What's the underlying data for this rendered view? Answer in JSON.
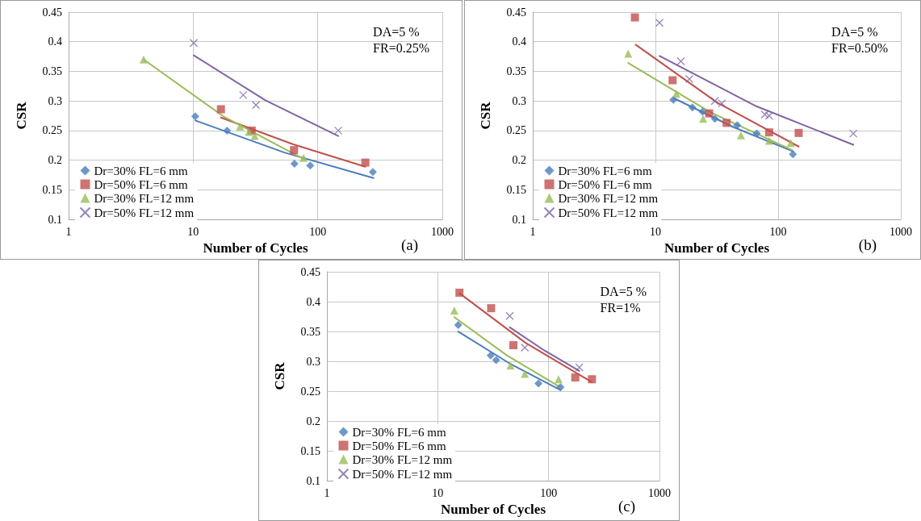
{
  "chart_data": [
    {
      "type": "scatter",
      "xlabel": "Number of Cycles",
      "ylabel": "CSR",
      "annotations": [
        "DA=5 %",
        "FR=0.25%",
        "(a)"
      ],
      "log": "x",
      "xlim": [
        1,
        1000
      ],
      "xticks": [
        1,
        10,
        100,
        1000
      ],
      "ylim": [
        0.1,
        0.45
      ],
      "yticks": [
        0.1,
        0.15,
        0.2,
        0.25,
        0.3,
        0.35,
        0.4,
        0.45
      ],
      "grid": true,
      "legend": "bottom left",
      "series": [
        {
          "name": "Dr=30% FL=6 mm",
          "color": "#4a7ebb",
          "marker": "diamond",
          "x": [
            10.4,
            18.7,
            65,
            87,
            277
          ],
          "values": [
            0.274,
            0.25,
            0.194,
            0.191,
            0.18
          ]
        },
        {
          "name": "Dr=50% FL=6 mm",
          "color": "#c0504d",
          "marker": "square",
          "x": [
            16.7,
            29.5,
            64.5,
            241
          ],
          "values": [
            0.286,
            0.25,
            0.217,
            0.196
          ]
        },
        {
          "name": "Dr=30% FL=12 mm",
          "color": "#9bbb59",
          "marker": "triangle",
          "x": [
            4,
            23.8,
            28,
            31.2,
            77
          ],
          "values": [
            0.37,
            0.257,
            0.248,
            0.241,
            0.204
          ]
        },
        {
          "name": "Dr=50% FL=12 mm",
          "color": "#8064a2",
          "marker": "cross",
          "x": [
            10.1,
            25.2,
            31.9,
            146
          ],
          "values": [
            0.398,
            0.31,
            0.293,
            0.25
          ]
        },
        {
          "type": "line",
          "color": "#4a7ebb",
          "marker": "none",
          "x": [
            10.4,
            54,
            280
          ],
          "values": [
            0.267,
            0.213,
            0.17
          ]
        },
        {
          "type": "line",
          "color": "#c0504d",
          "marker": "none",
          "x": [
            16.7,
            63,
            241
          ],
          "values": [
            0.272,
            0.227,
            0.189
          ]
        },
        {
          "type": "line",
          "color": "#9bbb59",
          "marker": "none",
          "x": [
            4,
            17.5,
            77
          ],
          "values": [
            0.37,
            0.274,
            0.202
          ]
        },
        {
          "type": "line",
          "color": "#8064a2",
          "marker": "none",
          "x": [
            10.1,
            38,
            146
          ],
          "values": [
            0.377,
            0.301,
            0.241
          ]
        }
      ]
    },
    {
      "type": "scatter",
      "xlabel": "Number of Cycles",
      "ylabel": "CSR",
      "annotations": [
        "DA=5 %",
        "FR=0.50%",
        "(b)"
      ],
      "log": "x",
      "xlim": [
        1,
        1000
      ],
      "xticks": [
        1,
        10,
        100,
        1000
      ],
      "ylim": [
        0.1,
        0.45
      ],
      "yticks": [
        0.1,
        0.15,
        0.2,
        0.25,
        0.3,
        0.35,
        0.4,
        0.45
      ],
      "grid": true,
      "legend": "bottom left",
      "series": [
        {
          "name": "Dr=30% FL=6 mm",
          "color": "#4a7ebb",
          "marker": "diamond",
          "x": [
            14,
            20,
            24.2,
            30.5,
            46.4,
            67,
            132
          ],
          "values": [
            0.302,
            0.289,
            0.282,
            0.27,
            0.259,
            0.245,
            0.21
          ]
        },
        {
          "name": "Dr=50% FL=6 mm",
          "color": "#c0504d",
          "marker": "square",
          "x": [
            6.8,
            13.8,
            27.4,
            38,
            84.5,
            147
          ],
          "values": [
            0.441,
            0.335,
            0.279,
            0.263,
            0.247,
            0.246
          ]
        },
        {
          "name": "Dr=30% FL=12 mm",
          "color": "#9bbb59",
          "marker": "triangle",
          "x": [
            6,
            14.8,
            24.5,
            49.8,
            84.5,
            127
          ],
          "values": [
            0.38,
            0.312,
            0.27,
            0.242,
            0.233,
            0.229
          ]
        },
        {
          "name": "Dr=50% FL=12 mm",
          "color": "#8064a2",
          "marker": "cross",
          "x": [
            10.8,
            16.1,
            18.9,
            30.5,
            34.8,
            77.9,
            84.5,
            410
          ],
          "values": [
            0.432,
            0.367,
            0.337,
            0.3,
            0.296,
            0.277,
            0.275,
            0.245
          ]
        },
        {
          "type": "line",
          "color": "#4a7ebb",
          "marker": "none",
          "x": [
            14,
            43,
            132
          ],
          "values": [
            0.305,
            0.256,
            0.215
          ]
        },
        {
          "type": "line",
          "color": "#c0504d",
          "marker": "none",
          "x": [
            6.9,
            32,
            147
          ],
          "values": [
            0.395,
            0.297,
            0.223
          ]
        },
        {
          "type": "line",
          "color": "#9bbb59",
          "marker": "none",
          "x": [
            6,
            28,
            130
          ],
          "values": [
            0.364,
            0.281,
            0.217
          ]
        },
        {
          "type": "line",
          "color": "#8064a2",
          "marker": "none",
          "x": [
            10.8,
            66.5,
            410
          ],
          "values": [
            0.376,
            0.291,
            0.226
          ]
        }
      ]
    },
    {
      "type": "scatter",
      "xlabel": "Number of Cycles",
      "ylabel": "CSR",
      "annotations": [
        "DA=5 %",
        "FR=1%",
        "(c)"
      ],
      "log": "x",
      "xlim": [
        1,
        1000
      ],
      "xticks": [
        1,
        10,
        100,
        1000
      ],
      "ylim": [
        0.1,
        0.45
      ],
      "yticks": [
        0.1,
        0.15,
        0.2,
        0.25,
        0.3,
        0.35,
        0.4,
        0.45
      ],
      "grid": true,
      "legend": "bottom left",
      "series": [
        {
          "name": "Dr=30% FL=6 mm",
          "color": "#4a7ebb",
          "marker": "diamond",
          "x": [
            15.3,
            30,
            33.6,
            81,
            128
          ],
          "values": [
            0.361,
            0.31,
            0.302,
            0.263,
            0.257
          ]
        },
        {
          "name": "Dr=50% FL=6 mm",
          "color": "#c0504d",
          "marker": "square",
          "x": [
            15.7,
            30.3,
            48.1,
            174,
            246
          ],
          "values": [
            0.415,
            0.389,
            0.327,
            0.273,
            0.27
          ]
        },
        {
          "name": "Dr=30% FL=12 mm",
          "color": "#9bbb59",
          "marker": "triangle",
          "x": [
            14.1,
            45.3,
            61,
            123
          ],
          "values": [
            0.385,
            0.293,
            0.279,
            0.27
          ]
        },
        {
          "name": "Dr=50% FL=12 mm",
          "color": "#8064a2",
          "marker": "cross",
          "x": [
            44.6,
            61,
            189
          ],
          "values": [
            0.376,
            0.323,
            0.29
          ]
        },
        {
          "type": "line",
          "color": "#4a7ebb",
          "marker": "none",
          "x": [
            15.3,
            44,
            128
          ],
          "values": [
            0.35,
            0.297,
            0.252
          ]
        },
        {
          "type": "line",
          "color": "#c0504d",
          "marker": "none",
          "x": [
            15.7,
            62,
            246
          ],
          "values": [
            0.414,
            0.331,
            0.265
          ]
        },
        {
          "type": "line",
          "color": "#9bbb59",
          "marker": "none",
          "x": [
            14.1,
            42,
            124
          ],
          "values": [
            0.374,
            0.31,
            0.258
          ]
        },
        {
          "type": "line",
          "color": "#8064a2",
          "marker": "none",
          "x": [
            44.6,
            92,
            189
          ],
          "values": [
            0.357,
            0.318,
            0.284
          ]
        }
      ]
    }
  ]
}
